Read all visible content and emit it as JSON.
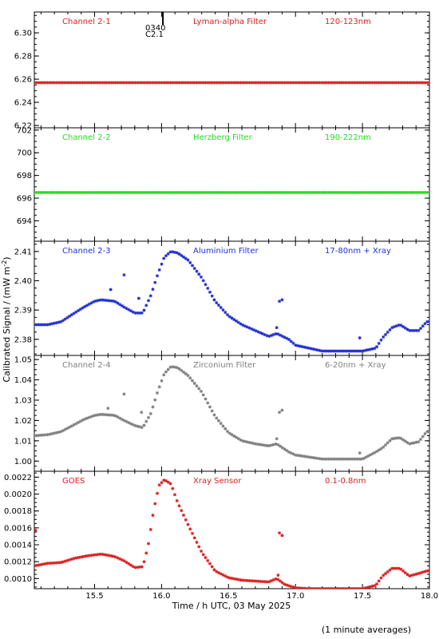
{
  "figure": {
    "ylabel": "Calibrated Signal / (mW m",
    "ylabel_sup": "-2",
    "ylabel_close": ")",
    "xlabel": "Time / h UTC, 03 May 2025",
    "footnote": "(1 minute averages)",
    "x_ticks": [
      "15.5",
      "16.0",
      "16.5",
      "17.0",
      "17.5",
      "18.0"
    ],
    "flare_marker": {
      "time": "0340",
      "class": "C2.1",
      "x": 16.01
    }
  },
  "chart_data": [
    {
      "type": "scatter",
      "channel": "Channel 2-1",
      "filter": "Lyman-alpha Filter",
      "band": "120-123nm",
      "color": "#dd2020",
      "ylim": [
        6.218,
        6.318
      ],
      "yticks": [
        6.22,
        6.24,
        6.26,
        6.28,
        6.3
      ],
      "ytick_labels": [
        "6.22",
        "6.24",
        "6.26",
        "6.28",
        "6.30"
      ],
      "xlim": [
        15.05,
        18.0
      ],
      "points": [
        [
          15.05,
          6.257
        ],
        [
          15.5,
          6.257
        ],
        [
          16.0,
          6.257
        ],
        [
          16.5,
          6.257
        ],
        [
          17.0,
          6.257
        ],
        [
          17.5,
          6.257
        ],
        [
          18.0,
          6.257
        ]
      ]
    },
    {
      "type": "scatter",
      "channel": "Channel 2-2",
      "filter": "Herzberg Filter",
      "band": "190-222nm",
      "color": "#20e020",
      "ylim": [
        692.2,
        702.2
      ],
      "yticks": [
        694,
        696,
        698,
        700,
        702
      ],
      "ytick_labels": [
        "694",
        "696",
        "698",
        "700",
        "702"
      ],
      "xlim": [
        15.05,
        18.0
      ],
      "points": [
        [
          15.05,
          696.5
        ],
        [
          15.5,
          696.5
        ],
        [
          16.0,
          696.5
        ],
        [
          16.5,
          696.5
        ],
        [
          17.0,
          696.5
        ],
        [
          17.5,
          696.5
        ],
        [
          18.0,
          696.5
        ]
      ]
    },
    {
      "type": "scatter",
      "channel": "Channel 2-3",
      "filter": "Aluminium Filter",
      "band": "17-80nm + Xray",
      "color": "#2030d0",
      "ylim": [
        2.3745,
        2.4135
      ],
      "yticks": [
        2.38,
        2.39,
        2.4,
        2.41
      ],
      "ytick_labels": [
        "2.38",
        "2.39",
        "2.40",
        "2.41"
      ],
      "xlim": [
        15.05,
        18.0
      ],
      "points": [
        [
          15.05,
          2.385
        ],
        [
          15.15,
          2.385
        ],
        [
          15.25,
          2.386
        ],
        [
          15.35,
          2.389
        ],
        [
          15.42,
          2.391
        ],
        [
          15.5,
          2.393
        ],
        [
          15.55,
          2.3935
        ],
        [
          15.65,
          2.393
        ],
        [
          15.72,
          2.391
        ],
        [
          15.8,
          2.389
        ],
        [
          15.86,
          2.389
        ],
        [
          15.92,
          2.395
        ],
        [
          15.97,
          2.402
        ],
        [
          16.02,
          2.408
        ],
        [
          16.07,
          2.41
        ],
        [
          16.12,
          2.4095
        ],
        [
          16.2,
          2.407
        ],
        [
          16.3,
          2.401
        ],
        [
          16.4,
          2.393
        ],
        [
          16.5,
          2.388
        ],
        [
          16.6,
          2.385
        ],
        [
          16.7,
          2.383
        ],
        [
          16.8,
          2.381
        ],
        [
          16.86,
          2.382
        ],
        [
          16.95,
          2.38
        ],
        [
          17.0,
          2.378
        ],
        [
          17.1,
          2.377
        ],
        [
          17.2,
          2.376
        ],
        [
          17.3,
          2.376
        ],
        [
          17.4,
          2.376
        ],
        [
          17.5,
          2.376
        ],
        [
          17.6,
          2.377
        ],
        [
          17.65,
          2.3805
        ],
        [
          17.72,
          2.384
        ],
        [
          17.78,
          2.385
        ],
        [
          17.85,
          2.383
        ],
        [
          17.92,
          2.383
        ],
        [
          17.98,
          2.386
        ],
        [
          18.0,
          2.386
        ]
      ],
      "outliers": [
        [
          15.62,
          2.397
        ],
        [
          15.72,
          2.402
        ],
        [
          15.83,
          2.394
        ],
        [
          16.88,
          2.393
        ],
        [
          16.9,
          2.3935
        ],
        [
          16.86,
          2.384
        ],
        [
          17.48,
          2.3805
        ]
      ]
    },
    {
      "type": "scatter",
      "channel": "Channel 2-4",
      "filter": "Zirconium Filter",
      "band": "6-20nm + Xray",
      "color": "#808080",
      "ylim": [
        0.995,
        1.052
      ],
      "yticks": [
        1.0,
        1.01,
        1.02,
        1.03,
        1.04,
        1.05
      ],
      "ytick_labels": [
        "1.00",
        "1.01",
        "1.02",
        "1.03",
        "1.04",
        "1.05"
      ],
      "xlim": [
        15.05,
        18.0
      ],
      "points": [
        [
          15.05,
          1.0125
        ],
        [
          15.15,
          1.013
        ],
        [
          15.25,
          1.0145
        ],
        [
          15.35,
          1.018
        ],
        [
          15.42,
          1.0205
        ],
        [
          15.5,
          1.0225
        ],
        [
          15.55,
          1.023
        ],
        [
          15.65,
          1.0225
        ],
        [
          15.72,
          1.02
        ],
        [
          15.8,
          1.0175
        ],
        [
          15.86,
          1.0165
        ],
        [
          15.92,
          1.0235
        ],
        [
          15.97,
          1.034
        ],
        [
          16.02,
          1.043
        ],
        [
          16.07,
          1.0465
        ],
        [
          16.12,
          1.046
        ],
        [
          16.2,
          1.042
        ],
        [
          16.3,
          1.034
        ],
        [
          16.4,
          1.022
        ],
        [
          16.5,
          1.014
        ],
        [
          16.6,
          1.01
        ],
        [
          16.7,
          1.0085
        ],
        [
          16.8,
          1.0075
        ],
        [
          16.86,
          1.0085
        ],
        [
          16.95,
          1.0045
        ],
        [
          17.0,
          1.003
        ],
        [
          17.1,
          1.002
        ],
        [
          17.2,
          1.001
        ],
        [
          17.3,
          1.001
        ],
        [
          17.4,
          1.001
        ],
        [
          17.5,
          1.001
        ],
        [
          17.6,
          1.0045
        ],
        [
          17.65,
          1.0065
        ],
        [
          17.72,
          1.011
        ],
        [
          17.78,
          1.0115
        ],
        [
          17.85,
          1.0085
        ],
        [
          17.92,
          1.0095
        ],
        [
          17.98,
          1.0145
        ],
        [
          18.0,
          1.0145
        ]
      ],
      "outliers": [
        [
          15.6,
          1.026
        ],
        [
          15.72,
          1.033
        ],
        [
          15.85,
          1.024
        ],
        [
          16.9,
          1.025
        ],
        [
          16.88,
          1.024
        ],
        [
          16.86,
          1.011
        ],
        [
          17.48,
          1.004
        ]
      ]
    },
    {
      "type": "scatter",
      "channel": "GOES",
      "filter": "Xray Sensor",
      "band": "0.1-0.8nm",
      "color": "#dd2020",
      "ylim": [
        0.00088,
        0.00227
      ],
      "yticks": [
        0.001,
        0.0012,
        0.0014,
        0.0016,
        0.0018,
        0.002,
        0.0022
      ],
      "ytick_labels": [
        "0.0010",
        "0.0012",
        "0.0014",
        "0.0016",
        "0.0018",
        "0.0020",
        "0.0022"
      ],
      "xlim": [
        15.05,
        18.0
      ],
      "points": [
        [
          15.05,
          0.00115
        ],
        [
          15.15,
          0.00118
        ],
        [
          15.25,
          0.00119
        ],
        [
          15.35,
          0.00124
        ],
        [
          15.45,
          0.00127
        ],
        [
          15.5,
          0.00128
        ],
        [
          15.55,
          0.00129
        ],
        [
          15.65,
          0.00126
        ],
        [
          15.72,
          0.00121
        ],
        [
          15.8,
          0.00113
        ],
        [
          15.86,
          0.00114
        ],
        [
          15.9,
          0.00139
        ],
        [
          15.94,
          0.0018
        ],
        [
          15.98,
          0.0021
        ],
        [
          16.02,
          0.00217
        ],
        [
          16.07,
          0.00212
        ],
        [
          16.12,
          0.0019
        ],
        [
          16.2,
          0.00163
        ],
        [
          16.3,
          0.00131
        ],
        [
          16.4,
          0.00109
        ],
        [
          16.5,
          0.00101
        ],
        [
          16.6,
          0.00098
        ],
        [
          16.7,
          0.00097
        ],
        [
          16.8,
          0.00096
        ],
        [
          16.86,
          0.001
        ],
        [
          16.92,
          0.00093
        ],
        [
          17.0,
          0.00089
        ],
        [
          17.1,
          0.00088
        ],
        [
          17.2,
          0.00088
        ],
        [
          17.3,
          0.00088
        ],
        [
          17.4,
          0.00088
        ],
        [
          17.5,
          0.00088
        ],
        [
          17.6,
          0.00092
        ],
        [
          17.65,
          0.00103
        ],
        [
          17.72,
          0.00112
        ],
        [
          17.78,
          0.00112
        ],
        [
          17.85,
          0.00103
        ],
        [
          17.92,
          0.00106
        ],
        [
          17.98,
          0.00109
        ],
        [
          18.0,
          0.00109
        ]
      ],
      "outliers": [
        [
          16.88,
          0.00154
        ],
        [
          16.9,
          0.00151
        ],
        [
          16.87,
          0.00104
        ],
        [
          15.06,
          0.00157
        ]
      ]
    }
  ]
}
